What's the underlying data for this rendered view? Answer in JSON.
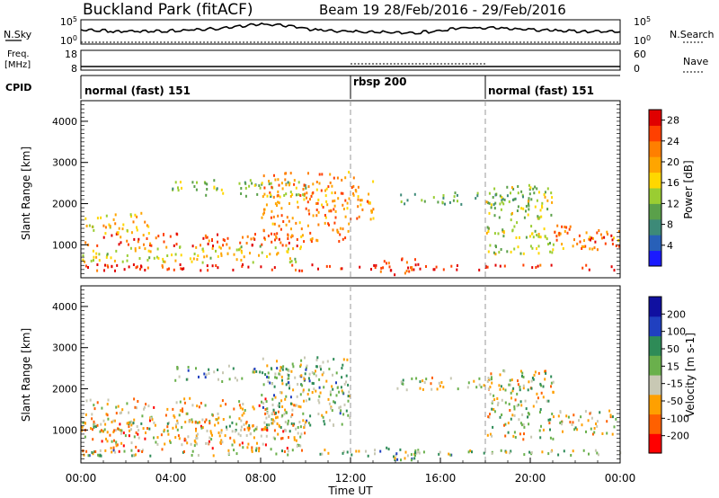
{
  "header": {
    "title": "Buckland Park (fitACF)",
    "beam_and_dates": "Beam 19  28/Feb/2016 - 29/Feb/2016"
  },
  "strip_panels": {
    "nsky": {
      "label": "N.Sky",
      "left_ticks": [
        "10^5",
        "10^0"
      ],
      "right_ticks": [
        "10^5",
        "10^0"
      ],
      "right_label": "N.Search"
    },
    "freq": {
      "label_line1": "Freq.",
      "label_line2": "[MHz]",
      "left_ticks": [
        "18",
        "8"
      ],
      "right_ticks": [
        "60",
        "0"
      ],
      "right_label": "Nave"
    },
    "cpid": {
      "label": "CPID"
    }
  },
  "modes": [
    {
      "label": "normal (fast) 151",
      "start_hour": 0
    },
    {
      "label": "rbsp 200",
      "start_hour": 12
    },
    {
      "label": "normal (fast) 151",
      "start_hour": 18
    }
  ],
  "x_axis": {
    "label": "Time UT",
    "ticks": [
      "00:00",
      "04:00",
      "08:00",
      "12:00",
      "16:00",
      "20:00",
      "00:00"
    ]
  },
  "colors": {
    "power": [
      "#1a1aff",
      "#2860b8",
      "#3d8a78",
      "#5aa04a",
      "#9acd32",
      "#ffd700",
      "#ffa500",
      "#ff7f00",
      "#ff4000",
      "#e00000"
    ],
    "velocity": [
      "#ff0000",
      "#ff6000",
      "#ffa000",
      "#c8c8b4",
      "#6ab04c",
      "#2e8b57",
      "#2040c0",
      "#1010a0"
    ]
  },
  "chart_data": [
    {
      "type": "heatmap",
      "ylabel": "Slant Range [km]",
      "y_ticks": [
        1000,
        2000,
        3000,
        4000
      ],
      "ylim": [
        200,
        4500
      ],
      "xlim": [
        0,
        24
      ],
      "colorbar": {
        "label": "Power [dB]",
        "ticks": [
          "4",
          "8",
          "12",
          "16",
          "20",
          "24",
          "28"
        ],
        "range": [
          0,
          30
        ]
      },
      "echo_bands": [
        {
          "from_hour": 0,
          "to_hour": 24,
          "range_km": [
            400,
            550
          ],
          "power_db": 28
        },
        {
          "from_hour": 0,
          "to_hour": 10,
          "range_km": [
            1000,
            1300
          ],
          "power_db": 25
        },
        {
          "from_hour": 0,
          "to_hour": 10,
          "range_km": [
            600,
            1000
          ],
          "power_db": 16
        },
        {
          "from_hour": 0,
          "to_hour": 3,
          "range_km": [
            1300,
            1800
          ],
          "power_db": 18
        },
        {
          "from_hour": 4,
          "to_hour": 10,
          "range_km": [
            2200,
            2600
          ],
          "power_db": 12
        },
        {
          "from_hour": 8,
          "to_hour": 12,
          "range_km": [
            1100,
            2800
          ],
          "power_db": 22
        },
        {
          "from_hour": 12,
          "to_hour": 13,
          "range_km": [
            1500,
            2700
          ],
          "power_db": 20
        },
        {
          "from_hour": 13,
          "to_hour": 15,
          "range_km": [
            300,
            700
          ],
          "power_db": 26
        },
        {
          "from_hour": 14,
          "to_hour": 20,
          "range_km": [
            2000,
            2300
          ],
          "power_db": 10
        },
        {
          "from_hour": 18,
          "to_hour": 21,
          "range_km": [
            800,
            2500
          ],
          "power_db": 14
        },
        {
          "from_hour": 21,
          "to_hour": 24,
          "range_km": [
            900,
            1500
          ],
          "power_db": 22
        },
        {
          "from_hour": 22,
          "to_hour": 24,
          "range_km": [
            1100,
            1300
          ],
          "power_db": 28
        }
      ]
    },
    {
      "type": "heatmap",
      "ylabel": "Slant Range [km]",
      "y_ticks": [
        1000,
        2000,
        3000,
        4000
      ],
      "ylim": [
        200,
        4500
      ],
      "xlim": [
        0,
        24
      ],
      "colorbar": {
        "label": "Velocity [m s-1]",
        "ticks": [
          "200",
          "100",
          "50",
          "15",
          "-15",
          "-50",
          "-100",
          "-200"
        ],
        "range": [
          -250,
          250
        ]
      },
      "echo_bands": [
        {
          "from_hour": 0,
          "to_hour": 24,
          "range_km": [
            400,
            550
          ],
          "velocity": 0
        },
        {
          "from_hour": 0,
          "to_hour": 10,
          "range_km": [
            1000,
            1300
          ],
          "velocity": 0
        },
        {
          "from_hour": 0,
          "to_hour": 10,
          "range_km": [
            500,
            1800
          ],
          "velocity": -80
        },
        {
          "from_hour": 4,
          "to_hour": 10,
          "range_km": [
            2200,
            2600
          ],
          "velocity": 40
        },
        {
          "from_hour": 8,
          "to_hour": 12,
          "range_km": [
            1100,
            2800
          ],
          "velocity": 10
        },
        {
          "from_hour": 13,
          "to_hour": 15,
          "range_km": [
            300,
            700
          ],
          "velocity": 60
        },
        {
          "from_hour": 14,
          "to_hour": 20,
          "range_km": [
            2000,
            2300
          ],
          "velocity": -40
        },
        {
          "from_hour": 18,
          "to_hour": 21,
          "range_km": [
            800,
            2500
          ],
          "velocity": -20
        },
        {
          "from_hour": 21,
          "to_hour": 24,
          "range_km": [
            900,
            1500
          ],
          "velocity": -60
        }
      ]
    }
  ]
}
